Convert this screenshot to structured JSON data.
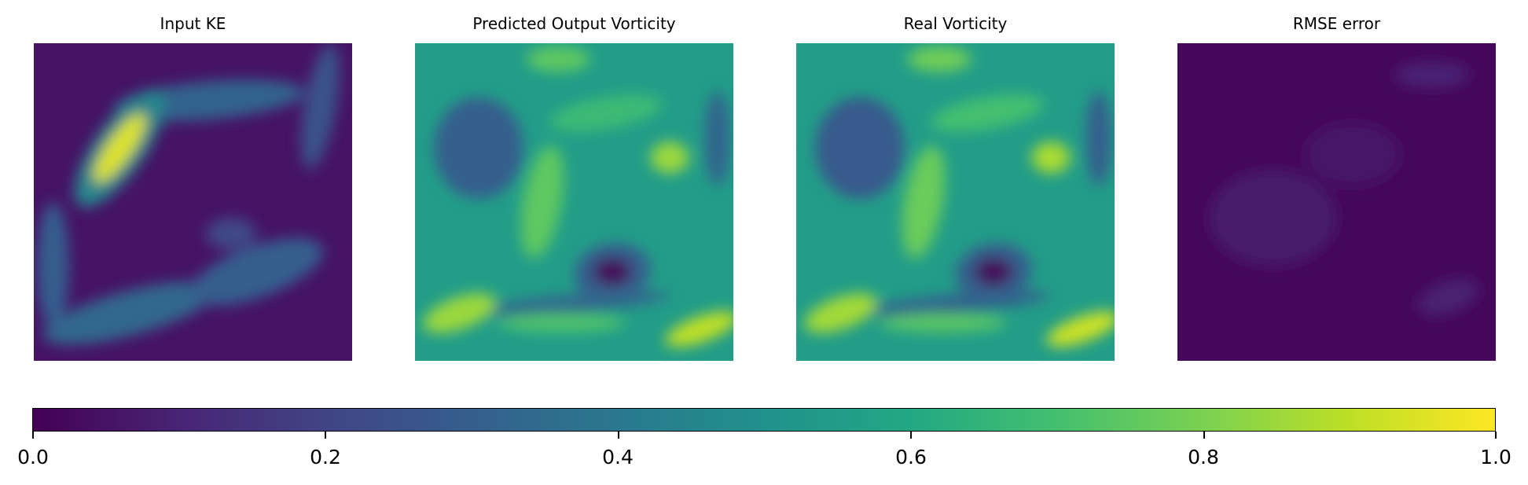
{
  "chart_data": [
    {
      "type": "heatmap",
      "title": "Input KE",
      "colormap": "viridis",
      "color_range": [
        0.0,
        1.0
      ],
      "blobs": [
        {
          "x": 0.27,
          "y": 0.33,
          "rx": 0.04,
          "ry": 0.13,
          "rot": 35,
          "value": 0.95
        },
        {
          "x": 0.27,
          "y": 0.33,
          "rx": 0.08,
          "ry": 0.22,
          "rot": 35,
          "value": 0.45
        },
        {
          "x": 0.55,
          "y": 0.18,
          "rx": 0.3,
          "ry": 0.06,
          "rot": -5,
          "value": 0.32
        },
        {
          "x": 0.7,
          "y": 0.72,
          "rx": 0.22,
          "ry": 0.08,
          "rot": -20,
          "value": 0.3
        },
        {
          "x": 0.3,
          "y": 0.85,
          "rx": 0.28,
          "ry": 0.07,
          "rot": -15,
          "value": 0.33
        },
        {
          "x": 0.06,
          "y": 0.7,
          "rx": 0.05,
          "ry": 0.2,
          "rot": 0,
          "value": 0.3
        },
        {
          "x": 0.9,
          "y": 0.2,
          "rx": 0.05,
          "ry": 0.2,
          "rot": 10,
          "value": 0.25
        },
        {
          "x": 0.62,
          "y": 0.6,
          "rx": 0.08,
          "ry": 0.05,
          "rot": 0,
          "value": 0.22
        }
      ],
      "background": 0.05
    },
    {
      "type": "heatmap",
      "title": "Predicted Output Vorticity",
      "colormap": "viridis",
      "color_range": [
        0.0,
        1.0
      ],
      "blobs": [
        {
          "x": 0.62,
          "y": 0.72,
          "rx": 0.06,
          "ry": 0.045,
          "rot": 0,
          "value": 0.02
        },
        {
          "x": 0.62,
          "y": 0.72,
          "rx": 0.12,
          "ry": 0.09,
          "rot": -10,
          "value": 0.3
        },
        {
          "x": 0.2,
          "y": 0.33,
          "rx": 0.14,
          "ry": 0.16,
          "rot": 0,
          "value": 0.3
        },
        {
          "x": 0.8,
          "y": 0.36,
          "rx": 0.06,
          "ry": 0.05,
          "rot": 0,
          "value": 0.85
        },
        {
          "x": 0.4,
          "y": 0.5,
          "rx": 0.06,
          "ry": 0.18,
          "rot": 10,
          "value": 0.75
        },
        {
          "x": 0.14,
          "y": 0.85,
          "rx": 0.12,
          "ry": 0.05,
          "rot": -20,
          "value": 0.85
        },
        {
          "x": 0.9,
          "y": 0.9,
          "rx": 0.12,
          "ry": 0.04,
          "rot": -20,
          "value": 0.9
        },
        {
          "x": 0.46,
          "y": 0.88,
          "rx": 0.2,
          "ry": 0.03,
          "rot": 0,
          "value": 0.72
        },
        {
          "x": 0.5,
          "y": 0.82,
          "rx": 0.3,
          "ry": 0.03,
          "rot": -5,
          "value": 0.33
        },
        {
          "x": 0.95,
          "y": 0.3,
          "rx": 0.04,
          "ry": 0.15,
          "rot": 0,
          "value": 0.32
        },
        {
          "x": 0.45,
          "y": 0.05,
          "rx": 0.1,
          "ry": 0.04,
          "rot": 0,
          "value": 0.75
        },
        {
          "x": 0.6,
          "y": 0.22,
          "rx": 0.18,
          "ry": 0.05,
          "rot": -10,
          "value": 0.68
        }
      ],
      "background": 0.55
    },
    {
      "type": "heatmap",
      "title": "Real Vorticity",
      "colormap": "viridis",
      "color_range": [
        0.0,
        1.0
      ],
      "blobs": [
        {
          "x": 0.62,
          "y": 0.72,
          "rx": 0.06,
          "ry": 0.045,
          "rot": 0,
          "value": 0.02
        },
        {
          "x": 0.62,
          "y": 0.72,
          "rx": 0.12,
          "ry": 0.09,
          "rot": -10,
          "value": 0.3
        },
        {
          "x": 0.2,
          "y": 0.33,
          "rx": 0.14,
          "ry": 0.16,
          "rot": 0,
          "value": 0.28
        },
        {
          "x": 0.8,
          "y": 0.36,
          "rx": 0.06,
          "ry": 0.05,
          "rot": 0,
          "value": 0.87
        },
        {
          "x": 0.4,
          "y": 0.5,
          "rx": 0.06,
          "ry": 0.18,
          "rot": 10,
          "value": 0.77
        },
        {
          "x": 0.14,
          "y": 0.85,
          "rx": 0.12,
          "ry": 0.05,
          "rot": -20,
          "value": 0.86
        },
        {
          "x": 0.9,
          "y": 0.9,
          "rx": 0.12,
          "ry": 0.04,
          "rot": -20,
          "value": 0.92
        },
        {
          "x": 0.46,
          "y": 0.88,
          "rx": 0.2,
          "ry": 0.03,
          "rot": 0,
          "value": 0.74
        },
        {
          "x": 0.5,
          "y": 0.82,
          "rx": 0.3,
          "ry": 0.03,
          "rot": -5,
          "value": 0.32
        },
        {
          "x": 0.95,
          "y": 0.3,
          "rx": 0.04,
          "ry": 0.15,
          "rot": 0,
          "value": 0.3
        },
        {
          "x": 0.45,
          "y": 0.05,
          "rx": 0.1,
          "ry": 0.04,
          "rot": 0,
          "value": 0.78
        },
        {
          "x": 0.6,
          "y": 0.22,
          "rx": 0.18,
          "ry": 0.05,
          "rot": -10,
          "value": 0.7
        }
      ],
      "background": 0.55
    },
    {
      "type": "heatmap",
      "title": "RMSE error",
      "colormap": "viridis",
      "color_range": [
        0.0,
        1.0
      ],
      "blobs": [
        {
          "x": 0.8,
          "y": 0.1,
          "rx": 0.12,
          "ry": 0.04,
          "rot": 0,
          "value": 0.1
        },
        {
          "x": 0.3,
          "y": 0.55,
          "rx": 0.2,
          "ry": 0.15,
          "rot": 0,
          "value": 0.07
        },
        {
          "x": 0.85,
          "y": 0.8,
          "rx": 0.1,
          "ry": 0.05,
          "rot": -20,
          "value": 0.09
        },
        {
          "x": 0.55,
          "y": 0.35,
          "rx": 0.15,
          "ry": 0.1,
          "rot": 0,
          "value": 0.06
        }
      ],
      "background": 0.02
    }
  ],
  "colorbar": {
    "colormap": "viridis",
    "range": [
      0.0,
      1.0
    ],
    "ticks": [
      "0.0",
      "0.2",
      "0.4",
      "0.6",
      "0.8",
      "1.0"
    ]
  }
}
